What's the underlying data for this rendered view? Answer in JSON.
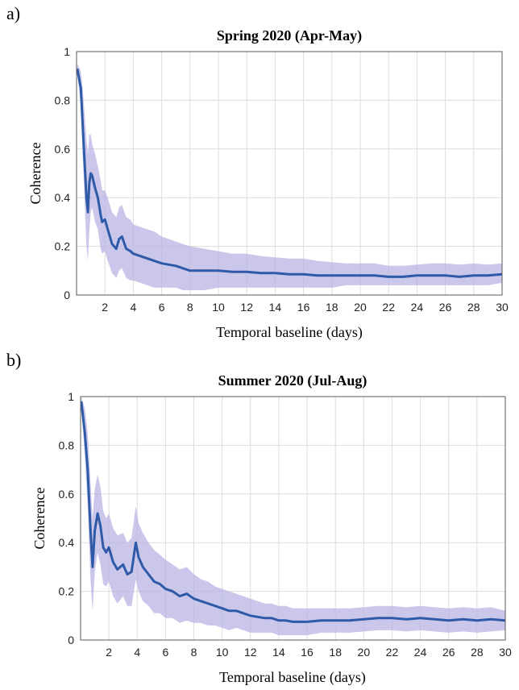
{
  "chart_data": [
    {
      "panel_label": "a)",
      "type": "line",
      "title": "Spring 2020 (Apr-May)",
      "xlabel": "Temporal baseline (days)",
      "ylabel": "Coherence",
      "xlim": [
        0,
        30
      ],
      "ylim": [
        0,
        1
      ],
      "xticks": [
        "2",
        "4",
        "6",
        "8",
        "10",
        "12",
        "14",
        "16",
        "18",
        "20",
        "22",
        "24",
        "26",
        "28",
        "30"
      ],
      "yticks": [
        "0",
        "0.2",
        "0.4",
        "0.6",
        "0.8",
        "1"
      ],
      "grid": true,
      "series": [
        {
          "color": "#2e5aa8",
          "band_color": "#b8b4e4",
          "x": [
            0.05,
            0.3,
            0.5,
            0.7,
            0.8,
            0.9,
            1.0,
            1.1,
            1.3,
            1.5,
            1.7,
            1.8,
            2.0,
            2.2,
            2.5,
            2.8,
            3.0,
            3.2,
            3.5,
            3.8,
            4.0,
            4.5,
            5.0,
            5.5,
            6.0,
            6.5,
            7.0,
            7.5,
            8.0,
            9.0,
            10.0,
            11.0,
            12.0,
            13.0,
            14.0,
            15.0,
            16.0,
            17.0,
            18.0,
            19.0,
            20.0,
            21.0,
            22.0,
            23.0,
            24.0,
            25.0,
            26.0,
            27.0,
            28.0,
            29.0,
            30.0
          ],
          "y": [
            0.93,
            0.85,
            0.62,
            0.4,
            0.34,
            0.46,
            0.5,
            0.49,
            0.44,
            0.4,
            0.33,
            0.3,
            0.31,
            0.27,
            0.21,
            0.19,
            0.23,
            0.24,
            0.19,
            0.18,
            0.17,
            0.16,
            0.15,
            0.14,
            0.13,
            0.125,
            0.12,
            0.11,
            0.1,
            0.1,
            0.1,
            0.095,
            0.095,
            0.09,
            0.09,
            0.085,
            0.085,
            0.08,
            0.08,
            0.08,
            0.08,
            0.08,
            0.075,
            0.075,
            0.08,
            0.08,
            0.08,
            0.075,
            0.08,
            0.08,
            0.085
          ],
          "upper": [
            0.95,
            0.92,
            0.8,
            0.64,
            0.58,
            0.66,
            0.66,
            0.62,
            0.58,
            0.53,
            0.47,
            0.43,
            0.43,
            0.4,
            0.34,
            0.32,
            0.36,
            0.37,
            0.32,
            0.31,
            0.29,
            0.28,
            0.27,
            0.26,
            0.24,
            0.23,
            0.22,
            0.21,
            0.2,
            0.19,
            0.18,
            0.17,
            0.17,
            0.16,
            0.155,
            0.15,
            0.15,
            0.14,
            0.135,
            0.13,
            0.13,
            0.13,
            0.12,
            0.12,
            0.125,
            0.13,
            0.13,
            0.125,
            0.13,
            0.125,
            0.13
          ],
          "lower": [
            0.91,
            0.78,
            0.48,
            0.2,
            0.14,
            0.26,
            0.34,
            0.36,
            0.3,
            0.27,
            0.19,
            0.17,
            0.18,
            0.14,
            0.09,
            0.07,
            0.1,
            0.11,
            0.07,
            0.06,
            0.06,
            0.05,
            0.04,
            0.03,
            0.03,
            0.03,
            0.03,
            0.02,
            0.02,
            0.02,
            0.03,
            0.03,
            0.03,
            0.03,
            0.03,
            0.03,
            0.03,
            0.03,
            0.03,
            0.04,
            0.04,
            0.04,
            0.04,
            0.04,
            0.04,
            0.04,
            0.04,
            0.04,
            0.04,
            0.04,
            0.05
          ]
        }
      ]
    },
    {
      "panel_label": "b)",
      "type": "line",
      "title": "Summer 2020 (Jul-Aug)",
      "xlabel": "Temporal baseline (days)",
      "ylabel": "Coherence",
      "xlim": [
        0,
        30
      ],
      "ylim": [
        0,
        1
      ],
      "xticks": [
        "2",
        "4",
        "6",
        "8",
        "10",
        "12",
        "14",
        "16",
        "18",
        "20",
        "22",
        "24",
        "26",
        "28",
        "30"
      ],
      "yticks": [
        "0",
        "0.2",
        "0.4",
        "0.6",
        "0.8",
        "1"
      ],
      "grid": true,
      "series": [
        {
          "color": "#2e5aa8",
          "band_color": "#b8b4e4",
          "x": [
            0.05,
            0.3,
            0.5,
            0.7,
            0.85,
            1.0,
            1.2,
            1.4,
            1.6,
            1.8,
            2.0,
            2.3,
            2.6,
            3.0,
            3.3,
            3.6,
            3.9,
            4.1,
            4.4,
            4.8,
            5.2,
            5.6,
            6.0,
            6.5,
            7.0,
            7.5,
            8.0,
            8.5,
            9.0,
            9.5,
            10.0,
            10.5,
            11.0,
            11.5,
            12.0,
            12.5,
            13.0,
            13.5,
            14.0,
            14.5,
            15.0,
            16.0,
            17.0,
            18.0,
            19.0,
            20.0,
            21.0,
            22.0,
            23.0,
            24.0,
            25.0,
            26.0,
            27.0,
            28.0,
            29.0,
            30.0
          ],
          "y": [
            0.98,
            0.85,
            0.7,
            0.45,
            0.3,
            0.45,
            0.52,
            0.47,
            0.38,
            0.36,
            0.38,
            0.32,
            0.29,
            0.31,
            0.27,
            0.28,
            0.4,
            0.34,
            0.3,
            0.27,
            0.24,
            0.23,
            0.21,
            0.2,
            0.18,
            0.19,
            0.17,
            0.16,
            0.15,
            0.14,
            0.13,
            0.12,
            0.12,
            0.11,
            0.1,
            0.095,
            0.09,
            0.09,
            0.08,
            0.08,
            0.075,
            0.075,
            0.08,
            0.08,
            0.08,
            0.085,
            0.09,
            0.09,
            0.085,
            0.09,
            0.085,
            0.08,
            0.085,
            0.08,
            0.085,
            0.08
          ],
          "upper": [
            1.0,
            0.95,
            0.85,
            0.65,
            0.5,
            0.62,
            0.68,
            0.63,
            0.53,
            0.5,
            0.52,
            0.46,
            0.43,
            0.44,
            0.4,
            0.42,
            0.55,
            0.48,
            0.44,
            0.4,
            0.37,
            0.35,
            0.33,
            0.31,
            0.29,
            0.3,
            0.27,
            0.25,
            0.24,
            0.22,
            0.21,
            0.2,
            0.19,
            0.18,
            0.17,
            0.16,
            0.15,
            0.15,
            0.14,
            0.14,
            0.13,
            0.13,
            0.13,
            0.13,
            0.13,
            0.135,
            0.14,
            0.14,
            0.135,
            0.14,
            0.135,
            0.13,
            0.135,
            0.13,
            0.135,
            0.12
          ],
          "lower": [
            0.96,
            0.75,
            0.55,
            0.25,
            0.12,
            0.28,
            0.36,
            0.31,
            0.23,
            0.22,
            0.24,
            0.18,
            0.15,
            0.18,
            0.14,
            0.14,
            0.25,
            0.2,
            0.16,
            0.14,
            0.11,
            0.11,
            0.09,
            0.09,
            0.07,
            0.08,
            0.07,
            0.07,
            0.06,
            0.06,
            0.05,
            0.04,
            0.05,
            0.04,
            0.03,
            0.03,
            0.03,
            0.03,
            0.02,
            0.02,
            0.02,
            0.02,
            0.03,
            0.03,
            0.03,
            0.035,
            0.04,
            0.04,
            0.035,
            0.04,
            0.035,
            0.03,
            0.035,
            0.03,
            0.035,
            0.04
          ]
        }
      ]
    }
  ]
}
